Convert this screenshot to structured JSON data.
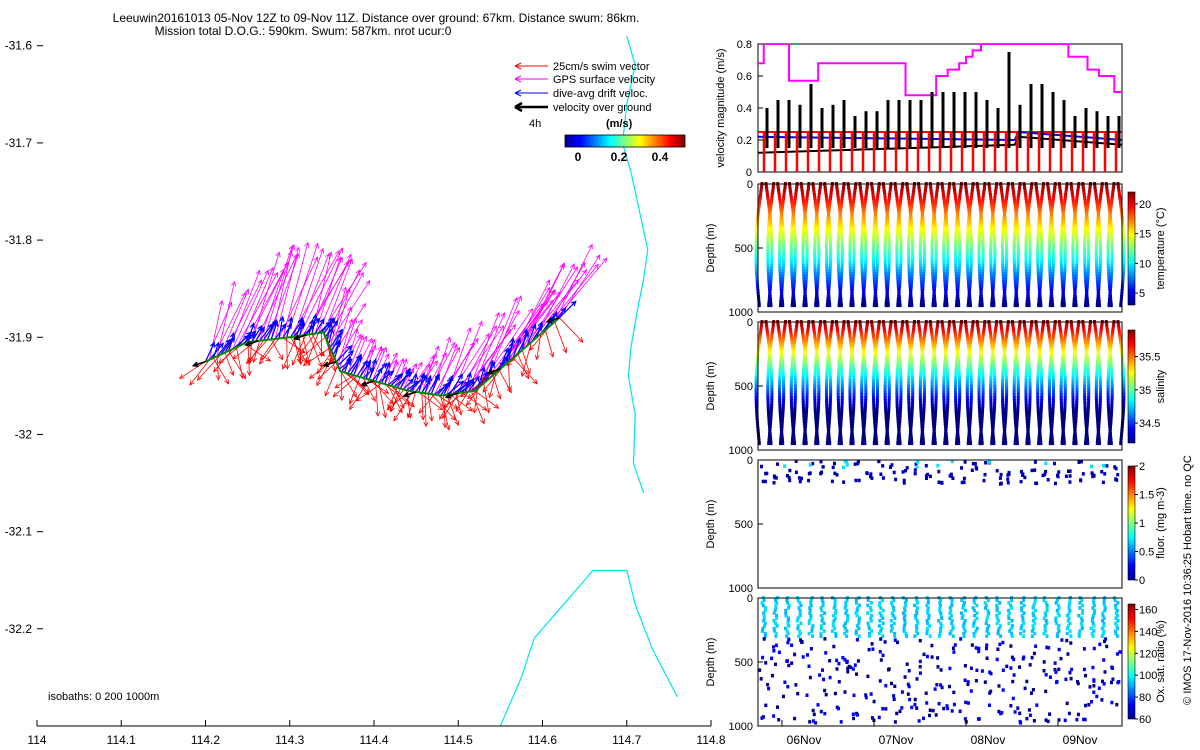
{
  "title_line1": "Leeuwin20161013 05-Nov 12Z to 09-Nov 11Z. Distance over ground: 67km. Distance swum: 86km.",
  "title_line2": "Mission total D.O.G.: 590km. Swum: 587km. nrot ucur:0",
  "legend": {
    "swim": "25cm/s swim vector",
    "gps": "GPS surface velocity",
    "drift": "dive-avg drift veloc.",
    "ground": "velocity over ground",
    "time_label": "4h",
    "colorbar_title": "(m/s)",
    "colorbar_ticks": [
      "0",
      "0.2",
      "0.4"
    ]
  },
  "isobaths_label": "isobaths: 0   200  1000m",
  "copyright": "© IMOS 17-Nov-2016 10:36:25 Hobart time. no QC",
  "colors": {
    "swim": "#ff0000",
    "gps": "#ff00ff",
    "drift": "#0000ff",
    "ground": "#000000",
    "coast": "#00e5ee"
  },
  "chart_data": [
    {
      "type": "scatter",
      "name": "map",
      "x_ticks": [
        "114",
        "114.1",
        "114.2",
        "114.3",
        "114.4",
        "114.5",
        "114.6",
        "114.7",
        "114.8"
      ],
      "y_ticks": [
        "-31.6",
        "-31.7",
        "-31.8",
        "-31.9",
        "-32",
        "-32.1",
        "-32.2"
      ],
      "xlim": [
        114.0,
        114.8
      ],
      "ylim": [
        -32.3,
        -31.59
      ],
      "track": [
        [
          114.2,
          -31.925
        ],
        [
          114.25,
          -31.905
        ],
        [
          114.3,
          -31.9
        ],
        [
          114.34,
          -31.895
        ],
        [
          114.36,
          -31.935
        ],
        [
          114.4,
          -31.945
        ],
        [
          114.44,
          -31.955
        ],
        [
          114.48,
          -31.96
        ],
        [
          114.52,
          -31.955
        ],
        [
          114.56,
          -31.925
        ],
        [
          114.62,
          -31.88
        ]
      ],
      "coast_isobath_1": [
        [
          114.7,
          -31.59
        ],
        [
          114.71,
          -31.62
        ],
        [
          114.7,
          -31.66
        ],
        [
          114.695,
          -31.7
        ],
        [
          114.705,
          -31.73
        ],
        [
          114.715,
          -31.77
        ],
        [
          114.725,
          -31.81
        ],
        [
          114.72,
          -31.84
        ],
        [
          114.712,
          -31.875
        ],
        [
          114.705,
          -31.91
        ],
        [
          114.702,
          -31.94
        ],
        [
          114.71,
          -31.98
        ],
        [
          114.708,
          -32.03
        ],
        [
          114.72,
          -32.06
        ]
      ],
      "coast_isobath_2": [
        [
          114.55,
          -32.3
        ],
        [
          114.575,
          -32.25
        ],
        [
          114.59,
          -32.21
        ],
        [
          114.615,
          -32.185
        ],
        [
          114.64,
          -32.16
        ],
        [
          114.66,
          -32.14
        ],
        [
          114.7,
          -32.14
        ],
        [
          114.71,
          -32.175
        ],
        [
          114.73,
          -32.22
        ],
        [
          114.76,
          -32.27
        ]
      ]
    },
    {
      "type": "line",
      "name": "velocity",
      "ylabel": "velocity magnitude (m/s)",
      "ylim": [
        0,
        0.8
      ],
      "y_ticks": [
        "0",
        "0.2",
        "0.4",
        "0.6",
        "0.8"
      ],
      "series": [
        {
          "key": "gps",
          "x": [
            0,
            0.5,
            1.5,
            2.5,
            3.2,
            4.0,
            4.6,
            5.2,
            5.9,
            6.6,
            7.3,
            8.1,
            9.0,
            10.0,
            11.0,
            11.8,
            12.5,
            13.3,
            14.2,
            15.0,
            15.7,
            16.5,
            17.3,
            18.0,
            18.8,
            19.5,
            20.5,
            21.5,
            22.2,
            23.2,
            24.0,
            25.0,
            26.0,
            27.2,
            28.0,
            29.0,
            30.0,
            31.0,
            32.0,
            33.0,
            33.8,
            34.5,
            35.3,
            36.2,
            37.0,
            38.0,
            38.5,
            39.5,
            40.5,
            41.5,
            42.5,
            43.5,
            44.5,
            45.0,
            46.5,
            47.5,
            48.2,
            49.0,
            49.5,
            50.5,
            51.5,
            52.5,
            53.5,
            54.3,
            55.0,
            56.0,
            57.0,
            58.2,
            59.0,
            60.0,
            61.2,
            62.0,
            62.8,
            63.5,
            64.5,
            65.5,
            66.5,
            67.5,
            68.3,
            69.0,
            70.0,
            71.0,
            72.2,
            73.0,
            74.0,
            75.0,
            76.0,
            77.0,
            78.0,
            79.0,
            80.0,
            81.0,
            82.0,
            83.0,
            84.0,
            85.0,
            86.0,
            87.0,
            88.0,
            89.0,
            90.0,
            91.0,
            92.0,
            93.0,
            94.0,
            95.0
          ],
          "values": [
            0.68,
            0.68,
            0.8,
            0.8,
            0.8,
            0.8,
            0.8,
            0.8,
            0.8,
            0.8,
            0.8,
            0.57,
            0.57,
            0.57,
            0.57,
            0.57,
            0.57,
            0.57,
            0.57,
            0.57,
            0.68,
            0.68,
            0.68,
            0.68,
            0.68,
            0.68,
            0.68,
            0.68,
            0.68,
            0.68,
            0.68,
            0.68,
            0.68,
            0.68,
            0.68,
            0.68,
            0.68,
            0.68,
            0.68,
            0.68,
            0.68,
            0.68,
            0.68,
            0.68,
            0.68,
            0.68,
            0.48,
            0.48,
            0.48,
            0.48,
            0.48,
            0.48,
            0.48,
            0.48,
            0.6,
            0.6,
            0.6,
            0.6,
            0.64,
            0.64,
            0.64,
            0.68,
            0.68,
            0.72,
            0.72,
            0.76,
            0.76,
            0.8,
            0.8,
            0.8,
            0.8,
            0.8,
            0.8,
            0.8,
            0.8,
            0.8,
            0.8,
            0.8,
            0.8,
            0.8,
            0.8,
            0.8,
            0.8,
            0.8,
            0.8,
            0.8,
            0.8,
            0.8,
            0.8,
            0.8,
            0.8,
            0.72,
            0.72,
            0.72,
            0.72,
            0.72,
            0.64,
            0.64,
            0.64,
            0.6,
            0.6,
            0.6,
            0.6,
            0.5,
            0.5,
            0.52
          ]
        },
        {
          "key": "swim",
          "x": [
            0,
            95
          ],
          "values": [
            0.25,
            0.25
          ]
        },
        {
          "key": "drift",
          "x": [
            0,
            67,
            68,
            95
          ],
          "values": [
            0.22,
            0.2,
            0.25,
            0.2
          ]
        },
        {
          "key": "ground",
          "x": [
            0,
            67,
            68,
            95
          ],
          "values": [
            0.12,
            0.17,
            0.22,
            0.17
          ]
        }
      ],
      "ground_spike_peaks": [
        0.4,
        0.45,
        0.45,
        0.42,
        0.55,
        0.4,
        0.42,
        0.45,
        0.35,
        0.38,
        0.38,
        0.45,
        0.45,
        0.45,
        0.45,
        0.5,
        0.5,
        0.5,
        0.5,
        0.5,
        0.45,
        0.4,
        0.75,
        0.42,
        0.55,
        0.55,
        0.5,
        0.45,
        0.35,
        0.4,
        0.38,
        0.35,
        0.35
      ]
    },
    {
      "type": "scatter",
      "name": "temperature",
      "ylabel": "Depth (m)",
      "ylim": [
        0,
        1000
      ],
      "y_ticks": [
        "0",
        "500",
        "1000"
      ],
      "colorbar_label": "temperature (°C)",
      "colorbar_ticks": [
        "5",
        "10",
        "15",
        "20"
      ],
      "dives": 31
    },
    {
      "type": "scatter",
      "name": "salinity",
      "ylabel": "Depth (m)",
      "ylim": [
        0,
        1000
      ],
      "y_ticks": [
        "0",
        "500",
        "1000"
      ],
      "colorbar_label": "salinity",
      "colorbar_ticks": [
        "34.5",
        "35",
        "35.5"
      ],
      "dives": 31
    },
    {
      "type": "scatter",
      "name": "fluorescence",
      "ylabel": "Depth (m)",
      "ylim": [
        0,
        1000
      ],
      "y_ticks": [
        "0",
        "500",
        "1000"
      ],
      "colorbar_label": "fluor. (mg m-3)",
      "colorbar_ticks": [
        "0",
        "0.5",
        "1",
        "1.5",
        "2"
      ]
    },
    {
      "type": "scatter",
      "name": "oxygen",
      "ylabel": "Depth (m)",
      "ylim": [
        0,
        1000
      ],
      "y_ticks": [
        "0",
        "500",
        "1000"
      ],
      "colorbar_label": "Ox. sat. ratio (%)",
      "colorbar_ticks": [
        "60",
        "80",
        "100",
        "120",
        "140",
        "160"
      ],
      "x_ticks": [
        "06Nov",
        "07Nov",
        "08Nov",
        "09Nov"
      ]
    }
  ]
}
